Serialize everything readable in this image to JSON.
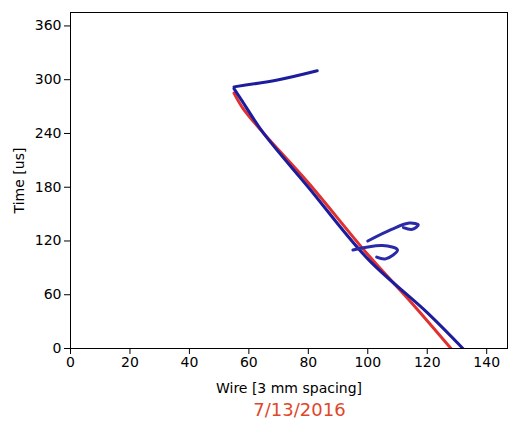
{
  "chart_data": {
    "type": "line",
    "x_label": "Wire [3 mm spacing]",
    "y_label": "Time [us]",
    "annotation": "7/13/2016",
    "xlim": [
      0,
      147
    ],
    "xticks": [
      0,
      20,
      40,
      60,
      80,
      100,
      120,
      140
    ],
    "ylim": [
      0,
      375
    ],
    "yticks": [
      0,
      60,
      120,
      180,
      240,
      300,
      360
    ],
    "grid": false,
    "series": [
      {
        "color": "#e03030",
        "x": [
          128,
          115,
          100,
          80,
          65,
          58,
          55
        ],
        "values": [
          0,
          50,
          105,
          185,
          240,
          268,
          285
        ]
      },
      {
        "color": "#1c1c9c",
        "x": [
          132,
          120,
          100,
          80,
          65,
          57,
          55
        ],
        "values": [
          0,
          40,
          100,
          180,
          240,
          280,
          290
        ]
      },
      {
        "color": "#1c1c9c",
        "x": [
          55,
          70,
          83
        ],
        "values": [
          292,
          300,
          310
        ]
      },
      {
        "color": "#2a2aa8",
        "x": [
          100,
          108,
          114,
          117,
          115,
          112
        ],
        "values": [
          120,
          133,
          140,
          138,
          133,
          135
        ]
      },
      {
        "color": "#2a2aa8",
        "x": [
          95,
          105,
          110,
          106,
          103
        ],
        "values": [
          110,
          115,
          110,
          100,
          102
        ]
      }
    ]
  }
}
